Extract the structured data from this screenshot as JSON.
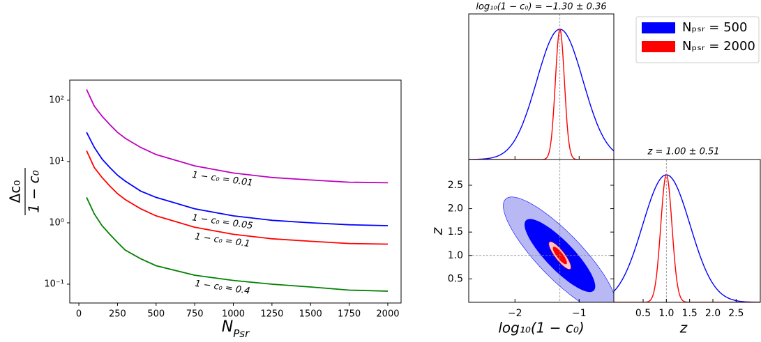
{
  "chart_data": [
    {
      "type": "line",
      "xlabel": [
        "N",
        "Psr"
      ],
      "ylabel": [
        "Δc₀",
        "1 − c₀"
      ],
      "x": [
        50,
        100,
        150,
        200,
        250,
        300,
        400,
        500,
        750,
        1000,
        1250,
        1500,
        1750,
        2000
      ],
      "series": [
        {
          "name": "1 − c₀ = 0.01",
          "color": "#bf00bf",
          "values": [
            150,
            80,
            55,
            40,
            30,
            24,
            17,
            13,
            8.5,
            6.5,
            5.5,
            5,
            4.6,
            4.5
          ]
        },
        {
          "name": "1 − c₀ = 0.05",
          "color": "#0000ff",
          "values": [
            30,
            17,
            11,
            8,
            6,
            4.8,
            3.3,
            2.6,
            1.7,
            1.3,
            1.1,
            1.0,
            0.93,
            0.9
          ]
        },
        {
          "name": "1 − c₀ = 0.1",
          "color": "#ff0000",
          "values": [
            15,
            8,
            5.5,
            4,
            3,
            2.4,
            1.7,
            1.3,
            0.85,
            0.65,
            0.55,
            0.5,
            0.46,
            0.45
          ]
        },
        {
          "name": "1 − c₀ = 0.4",
          "color": "#008000",
          "values": [
            2.6,
            1.4,
            0.9,
            0.65,
            0.48,
            0.36,
            0.26,
            0.2,
            0.14,
            0.115,
            0.1,
            0.09,
            0.08,
            0.077
          ]
        }
      ],
      "xlim": [
        -59,
        2086
      ],
      "xticks": [
        0,
        250,
        500,
        750,
        1000,
        1250,
        1500,
        1750,
        2000
      ],
      "ylim": [
        0.0493,
        213
      ],
      "yticks": [
        {
          "value": 0.1,
          "label": "10⁻¹"
        },
        {
          "value": 1,
          "label": "10⁰"
        },
        {
          "value": 10,
          "label": "10¹"
        },
        {
          "value": 100,
          "label": "10²"
        }
      ],
      "log_y": true
    },
    {
      "type": "corner",
      "xlabel": "log₁₀(1 − c₀)",
      "ylabel": "z",
      "titles": [
        "log₁₀(1 − c₀) = −1.30 ± 0.36",
        "z = 1.00 ± 0.51"
      ],
      "series": [
        {
          "name": "Nₚₛᵣ = 500",
          "color": "#0000ff",
          "fill_colors": [
            "#b8b8f5",
            "#0000ff"
          ],
          "mean": [
            -1.3,
            1.0
          ],
          "sigma": [
            0.36,
            0.51
          ],
          "rho": -0.85
        },
        {
          "name": "Nₚₛᵣ = 2000",
          "color": "#ff0000",
          "fill_colors": [
            "#ffc8c8",
            "#ff0000"
          ],
          "mean": [
            -1.3,
            1.0
          ],
          "sigma": [
            0.07,
            0.12
          ],
          "rho": -0.85
        }
      ],
      "xlim": [
        -2.72,
        -0.46
      ],
      "xticks": [
        {
          "value": -2,
          "label": "−2"
        },
        {
          "value": -1,
          "label": "−1"
        }
      ],
      "ylim": [
        0,
        3.05
      ],
      "yticks": [
        0.5,
        {
          "value": 1,
          "label": "1.0"
        },
        1.5,
        {
          "value": 2,
          "label": "2.0"
        },
        2.5
      ],
      "zlim": [
        -0.13,
        3.02
      ],
      "zticks": [
        0.5,
        {
          "value": 1,
          "label": "1.0"
        },
        1.5,
        {
          "value": 2,
          "label": "2.0"
        },
        2.5
      ],
      "legend": "upper right"
    }
  ]
}
